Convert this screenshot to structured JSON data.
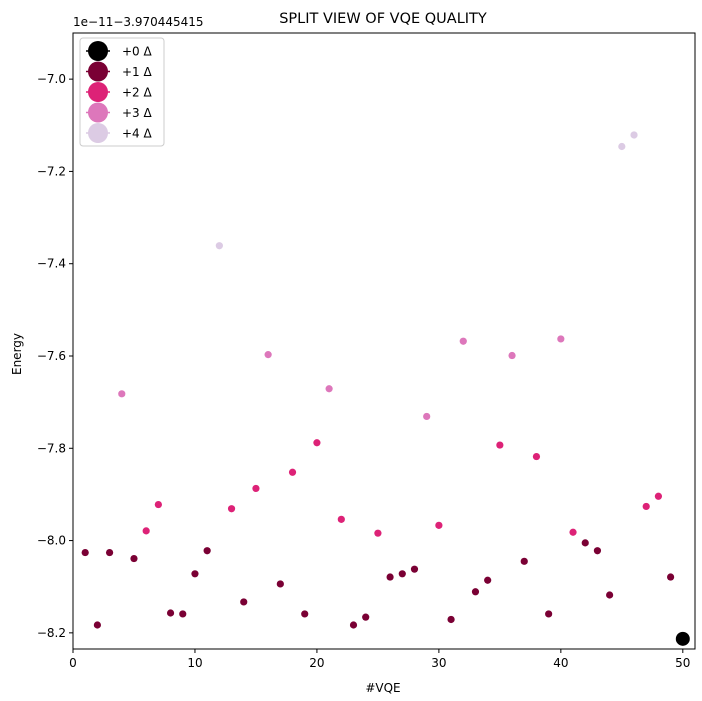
{
  "chart_data": {
    "type": "scatter",
    "title": "SPLIT VIEW OF VQE QUALITY",
    "xlabel": "#VQE",
    "ylabel": "Energy",
    "offset_label": "1e−11−3.970445415",
    "xlim": [
      0,
      51
    ],
    "ylim": [
      -8.235,
      -6.9
    ],
    "x_ticks": [
      0,
      10,
      20,
      30,
      40,
      50
    ],
    "x_tick_labels": [
      "0",
      "10",
      "20",
      "30",
      "40",
      "50"
    ],
    "y_ticks": [
      -7.0,
      -7.2,
      -7.4,
      -7.6,
      -7.8,
      -8.0,
      -8.2
    ],
    "y_tick_labels": [
      "−7.0",
      "−7.2",
      "−7.4",
      "−7.6",
      "−7.8",
      "−8.0",
      "−8.2"
    ],
    "grid": false,
    "legend_position": "top-left",
    "series": [
      {
        "name": "+0 Δ",
        "color": "#000000",
        "points": [
          [
            50,
            -8.213
          ]
        ]
      },
      {
        "name": "+1 Δ",
        "color": "#7a0034",
        "points": [
          [
            1,
            -8.026
          ],
          [
            2,
            -8.183
          ],
          [
            3,
            -8.026
          ],
          [
            5,
            -8.039
          ],
          [
            8,
            -8.157
          ],
          [
            9,
            -8.159
          ],
          [
            10,
            -8.072
          ],
          [
            11,
            -8.022
          ],
          [
            14,
            -8.133
          ],
          [
            17,
            -8.094
          ],
          [
            19,
            -8.159
          ],
          [
            23,
            -8.183
          ],
          [
            24,
            -8.166
          ],
          [
            26,
            -8.079
          ],
          [
            27,
            -8.072
          ],
          [
            28,
            -8.062
          ],
          [
            31,
            -8.171
          ],
          [
            33,
            -8.111
          ],
          [
            34,
            -8.086
          ],
          [
            37,
            -8.045
          ],
          [
            39,
            -8.159
          ],
          [
            42,
            -8.005
          ],
          [
            43,
            -8.022
          ],
          [
            44,
            -8.118
          ],
          [
            49,
            -8.079
          ]
        ]
      },
      {
        "name": "+2 Δ",
        "color": "#dd2277",
        "points": [
          [
            6,
            -7.979
          ],
          [
            7,
            -7.922
          ],
          [
            13,
            -7.931
          ],
          [
            15,
            -7.887
          ],
          [
            18,
            -7.852
          ],
          [
            20,
            -7.788
          ],
          [
            22,
            -7.954
          ],
          [
            25,
            -7.984
          ],
          [
            30,
            -7.967
          ],
          [
            35,
            -7.793
          ],
          [
            38,
            -7.818
          ],
          [
            41,
            -7.982
          ],
          [
            47,
            -7.926
          ],
          [
            48,
            -7.904
          ]
        ]
      },
      {
        "name": "+3 Δ",
        "color": "#dd77bb",
        "points": [
          [
            4,
            -7.682
          ],
          [
            16,
            -7.597
          ],
          [
            21,
            -7.671
          ],
          [
            29,
            -7.731
          ],
          [
            32,
            -7.568
          ],
          [
            36,
            -7.599
          ],
          [
            40,
            -7.563
          ]
        ]
      },
      {
        "name": "+4 Δ",
        "color": "#dccbe4",
        "points": [
          [
            12,
            -7.361
          ],
          [
            45,
            -7.146
          ],
          [
            46,
            -7.121
          ]
        ]
      }
    ]
  }
}
